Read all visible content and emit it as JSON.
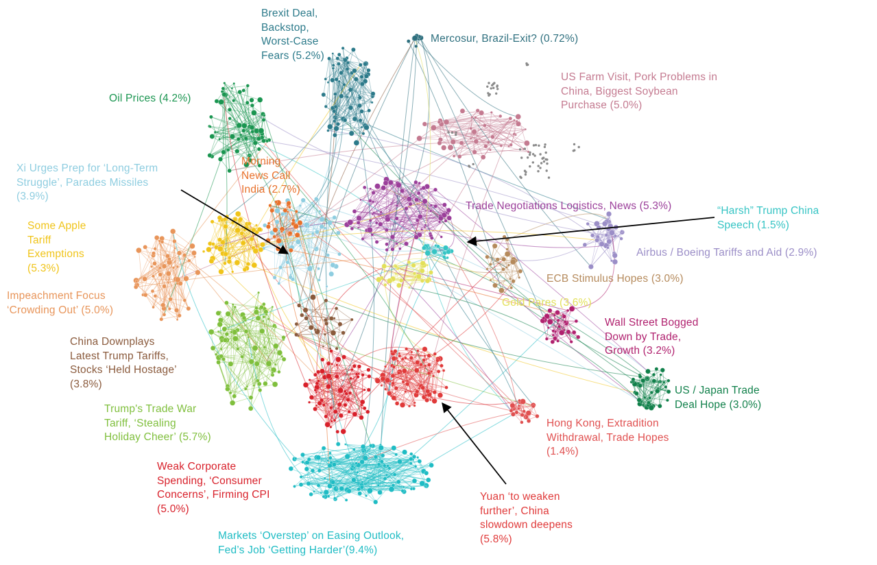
{
  "clusters": [
    {
      "id": "brexit",
      "label": "Brexit Deal,\nBackstop,\nWorst-Case\nFears (5.2%)",
      "color": "#2c7a8a"
    },
    {
      "id": "mercosur",
      "label": "Mercosur, Brazil-Exit? (0.72%)",
      "color": "#2e6f7e"
    },
    {
      "id": "farm",
      "label": "US Farm Visit, Pork Problems in\nChina, Biggest Soybean\nPurchase (5.0%)",
      "color": "#c47a90"
    },
    {
      "id": "oil",
      "label": "Oil Prices (4.2%)",
      "color": "#1a9550"
    },
    {
      "id": "xi",
      "label": "Xi Urges Prep for ‘Long-Term\nStruggle’, Parades Missiles\n(3.9%)",
      "color": "#8ecde0"
    },
    {
      "id": "morning",
      "label": "Morning\nNews Call\nIndia (2.7%)",
      "color": "#e8702a"
    },
    {
      "id": "trade_neg",
      "label": "Trade Negotiations Logistics, News (5.3%)",
      "color": "#9b3f9a"
    },
    {
      "id": "harsh",
      "label": "“Harsh” Trump China\nSpeech (1.5%)",
      "color": "#35c4c4"
    },
    {
      "id": "apple",
      "label": "Some Apple\nTariff\nExemptions\n(5.3%)",
      "color": "#f0c419"
    },
    {
      "id": "airbus",
      "label": "Airbus / Boeing Tariffs and Aid (2.9%)",
      "color": "#9b8ec7"
    },
    {
      "id": "ecb",
      "label": "ECB Stimulus Hopes (3.0%)",
      "color": "#b58a5c"
    },
    {
      "id": "impeach",
      "label": "Impeachment Focus\n‘Crowding Out’ (5.0%)",
      "color": "#e8955a"
    },
    {
      "id": "gold",
      "label": "Gold Pares (3.6%)",
      "color": "#e3e05a"
    },
    {
      "id": "wallst",
      "label": "Wall Street Bogged\nDown by Trade,\nGrowth (3.2%)",
      "color": "#b0206e"
    },
    {
      "id": "downplay",
      "label": "China Downplays\nLatest Trump Tariffs,\nStocks ‘Held Hostage’\n(3.8%)",
      "color": "#8a5a3c"
    },
    {
      "id": "japan",
      "label": "US / Japan Trade\nDeal Hope (3.0%)",
      "color": "#10804a"
    },
    {
      "id": "tradewar",
      "label": "Trump's Trade War\nTariff, ‘Stealing\nHoliday Cheer’ (5.7%)",
      "color": "#7fbf3c"
    },
    {
      "id": "hongkong",
      "label": "Hong Kong, Extradition\nWithdrawal, Trade Hopes\n(1.4%)",
      "color": "#e05050"
    },
    {
      "id": "weakcorp",
      "label": "Weak Corporate\nSpending, ‘Consumer\nConcerns’, Firming CPI\n(5.0%)",
      "color": "#d8202a"
    },
    {
      "id": "yuan",
      "label": "Yuan ‘to weaken\nfurther’, China\nslowdown deepens\n(5.8%)",
      "color": "#e03a3a"
    },
    {
      "id": "markets",
      "label": "Markets ‘Overstep’ on Easing Outlook,\nFed’s Job ‘Getting Harder’(9.4%)",
      "color": "#1fbcc4"
    }
  ]
}
